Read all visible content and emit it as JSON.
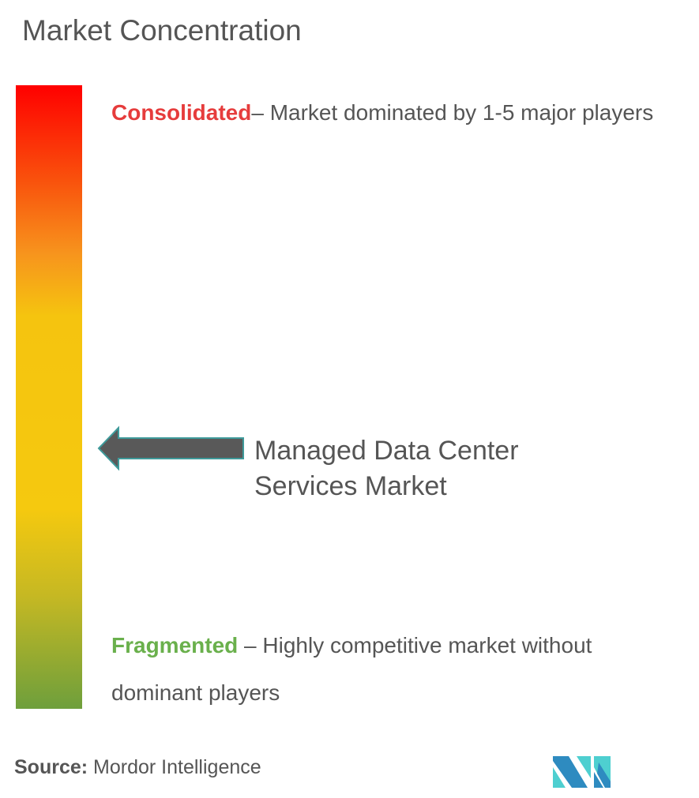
{
  "title": "Market Concentration",
  "scale": {
    "colors": {
      "top": "#ff0000",
      "middle": "#f5c90f",
      "bottom": "#6e9f3c"
    }
  },
  "consolidated": {
    "label": "Consolidated",
    "description": "– Market dominated by 1-5 major players",
    "color": "#e63c3c"
  },
  "fragmented": {
    "label": "Fragmented",
    "description": " – Highly competitive market without dominant players",
    "color": "#6ab04c"
  },
  "marker": {
    "label": "Managed Data Center Services Market",
    "position_fraction_from_top": 0.58
  },
  "source": {
    "label": "Source:",
    "value": " Mordor Intelligence"
  },
  "logo": {
    "colors": [
      "#2e8bc0",
      "#4ecfd0"
    ]
  }
}
